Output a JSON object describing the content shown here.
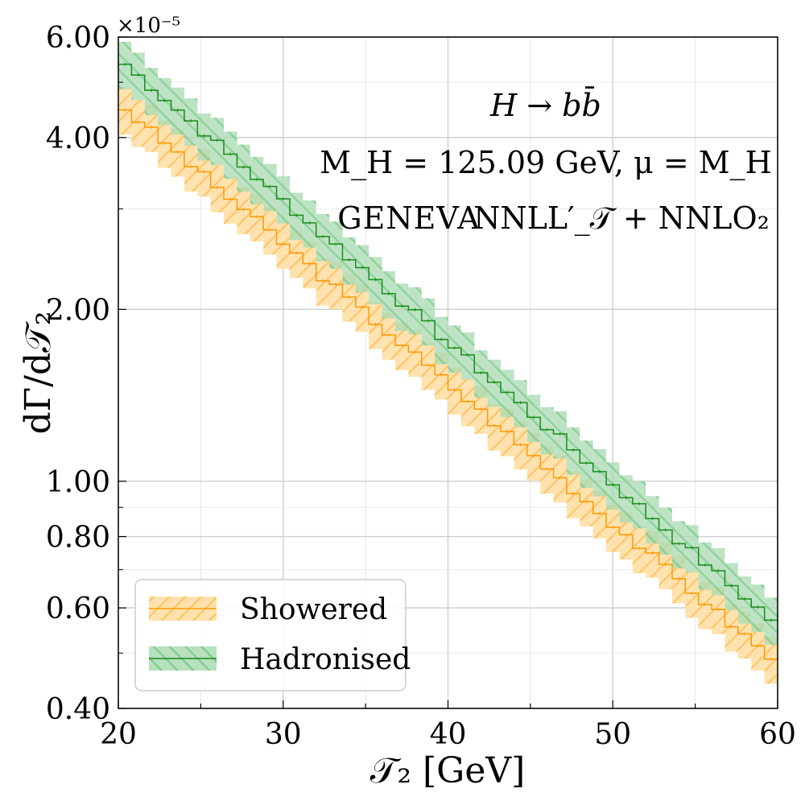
{
  "chart_data": {
    "type": "line",
    "style": "histogram step with uncertainty band",
    "xlabel": "𝒯₂   [GeV]",
    "ylabel": "dΓ/d𝒯₂",
    "x_scale": "linear",
    "y_scale": "log",
    "xlim": [
      20,
      60
    ],
    "ylim": [
      0.4,
      6.0
    ],
    "y_multiplier": "×10⁻⁵",
    "x_ticks": [
      20,
      30,
      40,
      50,
      60
    ],
    "y_ticks": [
      0.4,
      0.6,
      0.8,
      1.0,
      2.0,
      4.0,
      6.0
    ],
    "y_tick_labels": [
      "0.40",
      "0.60",
      "0.80",
      "1.00",
      "2.00",
      "4.00",
      "6.00"
    ],
    "x_tick_labels": [
      "20",
      "30",
      "40",
      "50",
      "60"
    ],
    "bin_width": 0.8,
    "grid": true,
    "legend_position": "bottom-left",
    "annotations": {
      "process": "H → bb̄",
      "params": "M_H = 125.09 GeV,  μ = M_H",
      "generator": "GENEVA",
      "accuracy": "NNLL′_𝒯 + NNLO₂"
    },
    "series": [
      {
        "name": "Showered",
        "color": "#ff9900",
        "band_color": "#ffd58f",
        "y_start": 4.6,
        "y_end": 0.48,
        "rel_band": 0.095,
        "ripple_seed": 3
      },
      {
        "name": "Hadronised",
        "color": "#1a8c1a",
        "band_color": "#8fd19e",
        "y_start": 5.5,
        "y_end": 0.56,
        "rel_band": 0.095,
        "ripple_seed": 7
      }
    ]
  }
}
